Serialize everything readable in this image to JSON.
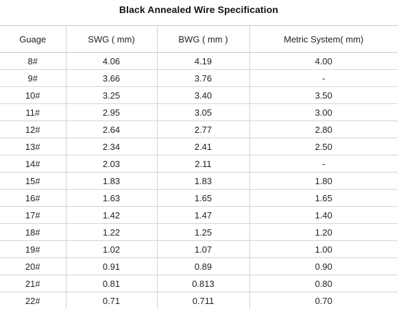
{
  "title": "Black Annealed Wire Specification",
  "table": {
    "headers": [
      "Guage",
      "SWG ( mm)",
      "BWG ( mm )",
      "Metric System( mm)"
    ],
    "rows": [
      [
        "8#",
        "4.06",
        "4.19",
        "4.00"
      ],
      [
        "9#",
        "3.66",
        "3.76",
        "-"
      ],
      [
        "10#",
        "3.25",
        "3.40",
        "3.50"
      ],
      [
        "11#",
        "2.95",
        "3.05",
        "3.00"
      ],
      [
        "12#",
        "2.64",
        "2.77",
        "2.80"
      ],
      [
        "13#",
        "2.34",
        "2.41",
        "2.50"
      ],
      [
        "14#",
        "2.03",
        "2.11",
        "-"
      ],
      [
        "15#",
        "1.83",
        "1.83",
        "1.80"
      ],
      [
        "16#",
        "1.63",
        "1.65",
        "1.65"
      ],
      [
        "17#",
        "1.42",
        "1.47",
        "1.40"
      ],
      [
        "18#",
        "1.22",
        "1.25",
        "1.20"
      ],
      [
        "19#",
        "1.02",
        "1.07",
        "1.00"
      ],
      [
        "20#",
        "0.91",
        "0.89",
        "0.90"
      ],
      [
        "21#",
        "0.81",
        "0.813",
        "0.80"
      ],
      [
        "22#",
        "0.71",
        "0.711",
        "0.70"
      ]
    ]
  }
}
